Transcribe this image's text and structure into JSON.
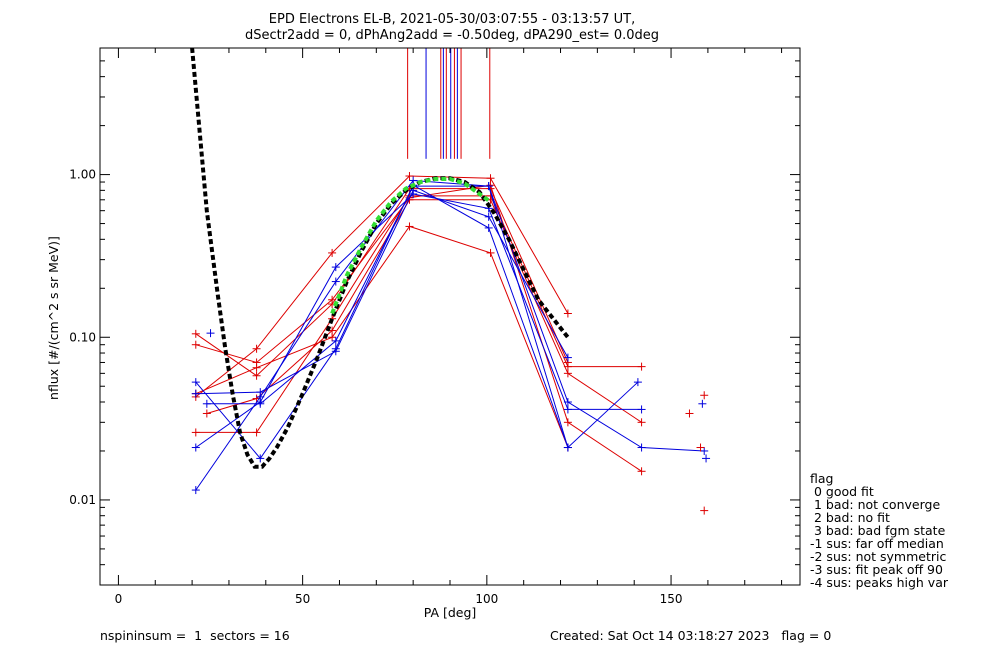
{
  "header": {
    "title_line1": "EPD Electrons EL-B, 2021-05-30/03:07:55 - 03:13:57 UT,",
    "title_line2": "dSectr2add = 0, dPhAng2add = -0.50deg, dPA290_est=   0.0deg"
  },
  "footer": {
    "left": "nspininsum =  1  sectors = 16",
    "right": "Created: Sat Oct 14 03:18:27 2023   flag = 0"
  },
  "legend": {
    "title": "flag",
    "items": [
      " 0 good fit",
      " 1 bad: not converge",
      " 2 bad: no fit",
      " 3 bad: bad fgm state",
      "-1 sus: far off median",
      "-2 sus: not symmetric",
      "-3 sus: fit peak off 90",
      "-4 sus: peaks high var"
    ]
  },
  "colors": {
    "red": "#dd0000",
    "blue": "#0000dd",
    "fit": "#000000",
    "fit_center": "#33dd33"
  },
  "chart_data": {
    "type": "line",
    "xlabel": "PA [deg]",
    "ylabel": "nflux [#/(cm^2 s sr MeV)]",
    "xlim": [
      -5,
      185
    ],
    "ylim": [
      0.003,
      6.0
    ],
    "yscale": "log",
    "xticks": [
      0,
      50,
      100,
      150
    ],
    "xtick_labels": [
      "0",
      "50",
      "100",
      "150"
    ],
    "yticks": [
      0.01,
      0.1,
      1.0
    ],
    "ytick_labels": [
      "0.01",
      "0.10",
      "1.00"
    ],
    "series": [
      {
        "color": "red",
        "x": [
          21,
          37.5,
          58,
          79,
          101,
          122
        ],
        "y": [
          0.105,
          0.058,
          0.16,
          0.82,
          0.82,
          0.07
        ]
      },
      {
        "color": "red",
        "x": [
          21,
          37.5,
          58,
          79,
          101,
          122
        ],
        "y": [
          0.043,
          0.085,
          0.33,
          0.98,
          0.95,
          0.14
        ]
      },
      {
        "color": "red",
        "x": [
          21,
          37.5,
          58,
          79,
          101,
          122,
          142
        ],
        "y": [
          0.026,
          0.026,
          0.13,
          0.74,
          0.74,
          0.066,
          0.066
        ]
      },
      {
        "color": "red",
        "x": [
          21,
          37.5,
          58,
          79,
          101,
          122
        ],
        "y": [
          0.045,
          0.065,
          0.1,
          0.48,
          0.33,
          0.021
        ]
      },
      {
        "color": "red",
        "x": [
          21,
          37.5,
          58,
          79,
          101,
          122,
          142
        ],
        "y": [
          0.09,
          0.07,
          0.17,
          0.72,
          0.86,
          0.03,
          0.015
        ]
      },
      {
        "color": "red",
        "x": [
          24,
          37.5,
          58,
          79,
          101,
          122,
          142
        ],
        "y": [
          0.034,
          0.042,
          0.11,
          0.7,
          0.7,
          0.06,
          0.03
        ]
      },
      {
        "color": "blue",
        "x": [
          21,
          38.5,
          59,
          80,
          100.5,
          122
        ],
        "y": [
          0.053,
          0.018,
          0.085,
          0.86,
          0.47,
          0.021
        ]
      },
      {
        "color": "blue",
        "x": [
          21,
          38.5,
          59,
          80,
          100.5,
          122,
          141
        ],
        "y": [
          0.0115,
          0.043,
          0.22,
          0.92,
          0.85,
          0.021,
          0.053
        ]
      },
      {
        "color": "blue",
        "x": [
          21,
          38.5,
          59,
          80,
          100.5,
          122,
          142
        ],
        "y": [
          0.021,
          0.04,
          0.27,
          0.76,
          0.62,
          0.036,
          0.036
        ]
      },
      {
        "color": "blue",
        "x": [
          24,
          38.5,
          59,
          80,
          100.5,
          122,
          142,
          159
        ],
        "y": [
          0.039,
          0.039,
          0.095,
          0.85,
          0.85,
          0.04,
          0.021,
          0.02
        ]
      },
      {
        "color": "blue",
        "x": [
          21,
          38.5,
          59,
          80,
          100.5,
          122
        ],
        "y": [
          0.045,
          0.046,
          0.082,
          0.8,
          0.55,
          0.075
        ]
      }
    ],
    "isolated_points": [
      {
        "color": "red",
        "x": 155,
        "y": 0.034
      },
      {
        "color": "red",
        "x": 159,
        "y": 0.044
      },
      {
        "color": "red",
        "x": 159,
        "y": 0.0086
      },
      {
        "color": "red",
        "x": 158,
        "y": 0.021
      },
      {
        "color": "blue",
        "x": 158.5,
        "y": 0.039
      },
      {
        "color": "blue",
        "x": 159.5,
        "y": 0.018
      },
      {
        "color": "blue",
        "x": 25,
        "y": 0.106
      }
    ],
    "fit_curve": {
      "x": [
        20,
        24,
        27,
        29,
        31,
        33,
        35,
        37,
        39,
        41,
        43,
        46,
        50,
        54,
        58,
        62,
        66,
        70,
        74,
        78,
        82,
        86,
        90,
        94,
        98,
        102,
        106,
        110,
        114,
        118,
        122
      ],
      "y": [
        6.0,
        0.6,
        0.18,
        0.085,
        0.045,
        0.026,
        0.019,
        0.016,
        0.016,
        0.018,
        0.021,
        0.028,
        0.045,
        0.075,
        0.13,
        0.22,
        0.34,
        0.5,
        0.66,
        0.8,
        0.9,
        0.95,
        0.95,
        0.9,
        0.78,
        0.58,
        0.4,
        0.26,
        0.17,
        0.13,
        0.1
      ]
    },
    "fit_center": {
      "x": [
        58,
        62,
        66,
        70,
        74,
        78,
        82,
        86,
        90,
        94,
        98,
        101
      ],
      "y": [
        0.14,
        0.24,
        0.36,
        0.52,
        0.68,
        0.82,
        0.9,
        0.94,
        0.94,
        0.88,
        0.76,
        0.68
      ]
    },
    "vertical_markers": [
      {
        "color": "red",
        "x": 78.5
      },
      {
        "color": "blue",
        "x": 83.5
      },
      {
        "color": "red",
        "x": 87.5
      },
      {
        "color": "blue",
        "x": 88.2
      },
      {
        "color": "red",
        "x": 89.0
      },
      {
        "color": "blue",
        "x": 90.2
      },
      {
        "color": "red",
        "x": 91.2
      },
      {
        "color": "blue",
        "x": 92.0
      },
      {
        "color": "red",
        "x": 93.0
      },
      {
        "color": "red",
        "x": 100.8
      }
    ]
  }
}
